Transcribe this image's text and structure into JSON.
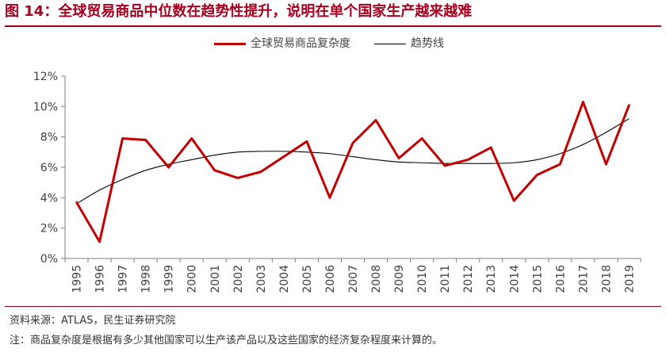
{
  "figure": {
    "title": "图 14：全球贸易商品中位数在趋势性提升，说明在单个国家生产越来越难",
    "source": "资料来源：ATLAS，民生证券研究院",
    "note": "注：商品复杂度是根据有多少其他国家可以生产该产品以及这些国家的经济复杂程度来计算的。"
  },
  "colors": {
    "accent": "#a5001e",
    "series": "#c00000",
    "trend": "#000000",
    "axis": "#7f7f7f"
  },
  "chart_data": {
    "type": "line",
    "title": "",
    "xlabel": "",
    "ylabel": "",
    "ylim": [
      0,
      12
    ],
    "yticks": [
      0,
      2,
      4,
      6,
      8,
      10,
      12
    ],
    "ytick_labels": [
      "0%",
      "2%",
      "4%",
      "6%",
      "8%",
      "10%",
      "12%"
    ],
    "categories": [
      "1995",
      "1996",
      "1997",
      "1998",
      "1999",
      "2000",
      "2001",
      "2002",
      "2003",
      "2004",
      "2005",
      "2006",
      "2007",
      "2008",
      "2009",
      "2010",
      "2011",
      "2012",
      "2013",
      "2014",
      "2015",
      "2016",
      "2017",
      "2018",
      "2019"
    ],
    "legend_position": "top-center",
    "series": [
      {
        "name": "全球贸易商品复杂度",
        "x": [
          0,
          1,
          2,
          3,
          4,
          5,
          6,
          7,
          8,
          9,
          10,
          11,
          12,
          13,
          14,
          15,
          16,
          17,
          18,
          19,
          20,
          21,
          22,
          23,
          24
        ],
        "values": [
          3.7,
          1.1,
          7.9,
          7.8,
          6.0,
          7.9,
          5.8,
          5.3,
          5.7,
          6.7,
          7.7,
          4.0,
          7.6,
          9.1,
          6.6,
          7.9,
          6.1,
          6.5,
          7.3,
          3.8,
          5.5,
          6.2,
          10.3,
          6.2,
          10.1
        ]
      },
      {
        "name": "趋势线",
        "x": [
          0,
          1,
          2,
          3,
          4,
          5,
          6,
          7,
          8,
          9,
          10,
          11,
          12,
          13,
          14,
          15,
          16,
          17,
          18,
          19,
          20,
          21,
          22,
          23,
          24
        ],
        "values": [
          3.6,
          4.5,
          5.2,
          5.8,
          6.2,
          6.5,
          6.8,
          7.0,
          7.05,
          7.05,
          7.0,
          6.9,
          6.7,
          6.5,
          6.35,
          6.3,
          6.25,
          6.25,
          6.25,
          6.3,
          6.5,
          6.9,
          7.5,
          8.3,
          9.2
        ]
      }
    ]
  }
}
